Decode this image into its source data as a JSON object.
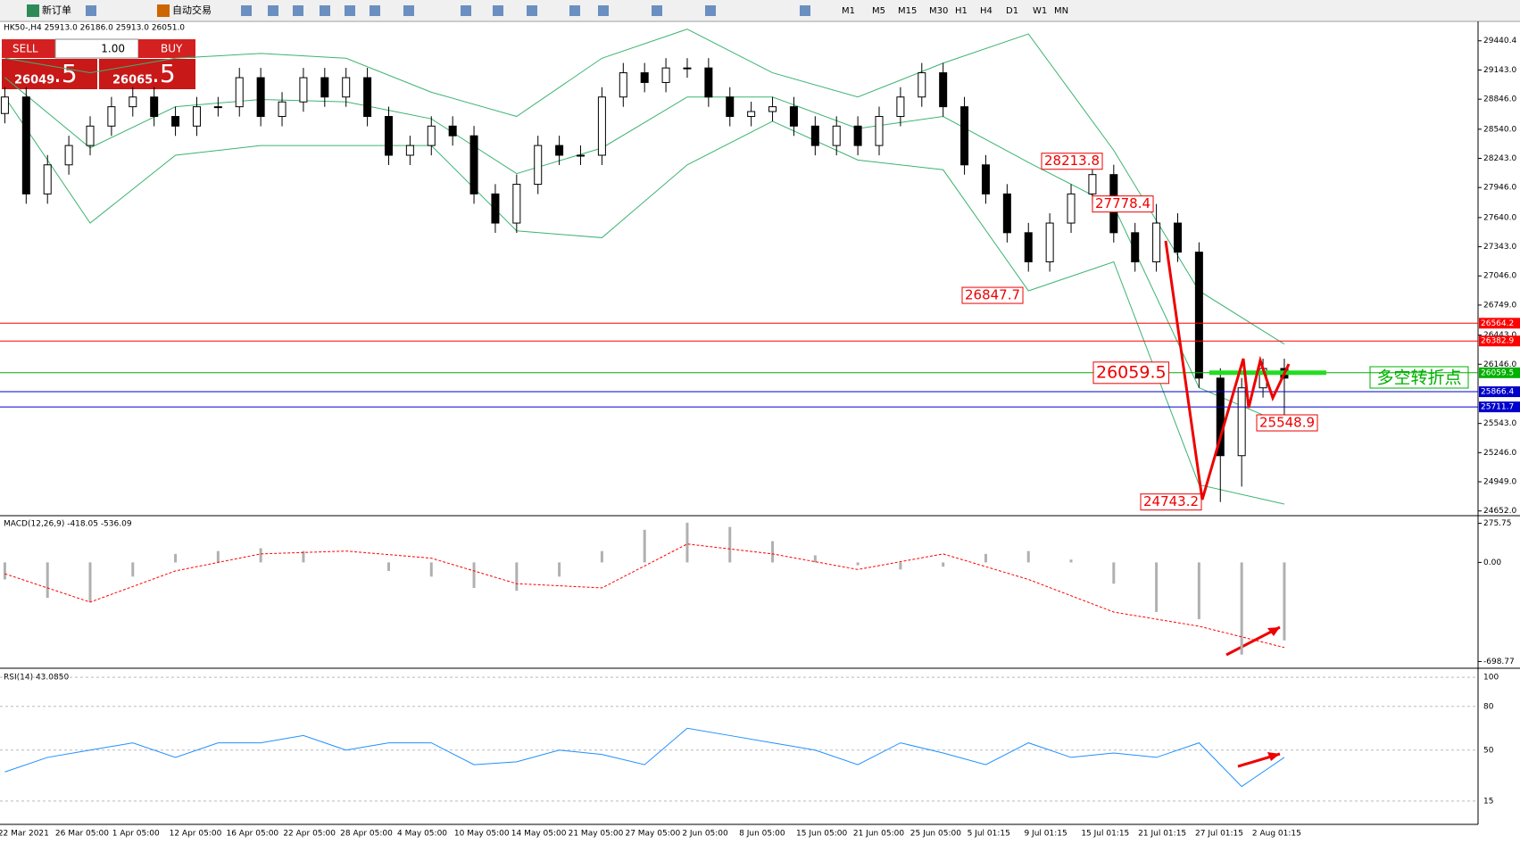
{
  "toolbar": {
    "new_order": "新订单",
    "auto_trading": "自动交易",
    "timeframes": [
      "M1",
      "M5",
      "M15",
      "M30",
      "H1",
      "H4",
      "D1",
      "W1",
      "MN"
    ]
  },
  "trade_panel": {
    "sell": "SELL",
    "buy": "BUY",
    "lot": "1.00",
    "sell_price": "26049",
    "sell_pips": ".5",
    "buy_price": "26065",
    "buy_pips": ".5"
  },
  "chart": {
    "header": "HK50-,H4  25913.0 26186.0 25913.0 26051.0",
    "ylim": [
      24622,
      29638
    ],
    "yticks": [
      29440.4,
      {
        "value": 29143,
        "label": "29143.0"
      },
      {
        "value": 28846,
        "label": "28846.0"
      },
      {
        "value": 28540,
        "label": "28540.0"
      },
      {
        "value": 28243,
        "label": "28243.0"
      },
      {
        "value": 27946,
        "label": "27946.0"
      },
      {
        "value": 27640,
        "label": "27640.0"
      },
      {
        "value": 27343,
        "label": "27343.0"
      },
      {
        "value": 27046,
        "label": "27046.0"
      },
      {
        "value": 26749,
        "label": "26749.0"
      },
      {
        "value": 26443,
        "label": "26443.0"
      },
      {
        "value": 26146,
        "label": "26146.0"
      },
      {
        "value": 25543,
        "label": "25543.0"
      },
      {
        "value": 25246,
        "label": "25246.0"
      },
      {
        "value": 24949,
        "label": "24949.0"
      },
      {
        "value": 24652,
        "label": "24652.0"
      }
    ],
    "levels": [
      {
        "value": 26564.2,
        "color": "#ff0000"
      },
      {
        "value": 26382.9,
        "color": "#ff0000"
      },
      {
        "value": 26059.5,
        "color": "#00b000"
      },
      {
        "value": 25866.4,
        "color": "#0000cc"
      },
      {
        "value": 25711.7,
        "color": "#0000cc"
      }
    ],
    "annotations": [
      28213.8,
      27778.4,
      26847.7,
      26059.5,
      25548.9,
      24743.2
    ],
    "pivot_label": "多空转折点",
    "candles": [
      [
        28700,
        28968,
        28600,
        28868
      ],
      [
        28868,
        28968,
        27781,
        27881
      ],
      [
        27881,
        28277,
        27781,
        28177
      ],
      [
        28177,
        28474,
        28077,
        28374
      ],
      [
        28374,
        28672,
        28274,
        28572
      ],
      [
        28572,
        28869,
        28472,
        28769
      ],
      [
        28769,
        28968,
        28669,
        28868
      ],
      [
        28868,
        28968,
        28570,
        28670
      ],
      [
        28670,
        28770,
        28472,
        28572
      ],
      [
        28572,
        28869,
        28472,
        28769
      ],
      [
        28769,
        28869,
        28669,
        28769
      ],
      [
        28769,
        29165,
        28669,
        29065
      ],
      [
        29065,
        29165,
        28570,
        28670
      ],
      [
        28670,
        28918,
        28570,
        28818
      ],
      [
        28818,
        29165,
        28718,
        29065
      ],
      [
        29065,
        29165,
        28768,
        28868
      ],
      [
        28868,
        29165,
        28768,
        29065
      ],
      [
        29065,
        29165,
        28570,
        28670
      ],
      [
        28670,
        28770,
        28175,
        28275
      ],
      [
        28275,
        28474,
        28175,
        28374
      ],
      [
        28374,
        28672,
        28274,
        28572
      ],
      [
        28572,
        28672,
        28373,
        28473
      ],
      [
        28473,
        28573,
        27781,
        27881
      ],
      [
        27881,
        27981,
        27484,
        27584
      ],
      [
        27584,
        28079,
        27484,
        27979
      ],
      [
        27979,
        28474,
        27879,
        28374
      ],
      [
        28374,
        28474,
        28175,
        28275
      ],
      [
        28275,
        28375,
        28175,
        28275
      ],
      [
        28275,
        28968,
        28175,
        28868
      ],
      [
        28868,
        29215,
        28768,
        29115
      ],
      [
        29115,
        29215,
        28916,
        29016
      ],
      [
        29016,
        29264,
        28916,
        29164
      ],
      [
        29164,
        29264,
        29064,
        29164
      ],
      [
        29164,
        29264,
        28768,
        28868
      ],
      [
        28868,
        28968,
        28570,
        28670
      ],
      [
        28670,
        28820,
        28570,
        28720
      ],
      [
        28720,
        28869,
        28620,
        28769
      ],
      [
        28769,
        28869,
        28472,
        28572
      ],
      [
        28572,
        28672,
        28274,
        28374
      ],
      [
        28374,
        28672,
        28274,
        28572
      ],
      [
        28572,
        28672,
        28274,
        28374
      ],
      [
        28374,
        28770,
        28274,
        28670
      ],
      [
        28670,
        28968,
        28570,
        28868
      ],
      [
        28868,
        29215,
        28768,
        29115
      ],
      [
        29115,
        29215,
        28669,
        28769
      ],
      [
        28769,
        28869,
        28077,
        28177
      ],
      [
        28177,
        28277,
        27781,
        27881
      ],
      [
        27881,
        27981,
        27386,
        27486
      ],
      [
        27486,
        27586,
        27089,
        27189
      ],
      [
        27189,
        27684,
        27089,
        27584
      ],
      [
        27584,
        27981,
        27484,
        27881
      ],
      [
        27881,
        28214,
        27781,
        28078
      ],
      [
        28078,
        28178,
        27386,
        27486
      ],
      [
        27486,
        27586,
        27089,
        27189
      ],
      [
        27189,
        27778,
        27089,
        27584
      ],
      [
        27584,
        27684,
        27188,
        27288
      ],
      [
        27288,
        27388,
        25905,
        26005
      ],
      [
        26005,
        26105,
        24743,
        25215
      ],
      [
        25215,
        26006,
        24900,
        25906
      ],
      [
        25906,
        26203,
        25806,
        26103
      ],
      [
        26103,
        26203,
        25549,
        26005
      ]
    ],
    "bands": {
      "color": "#3cb371",
      "upper": [
        29263,
        29115,
        29263,
        29312,
        29263,
        28917,
        28670,
        29263,
        29559,
        29115,
        28868,
        29213,
        29510,
        28325,
        26894,
        26351
      ],
      "middle": [
        29066,
        28350,
        28769,
        28843,
        28819,
        28646,
        28088,
        28349,
        28868,
        28868,
        28547,
        28670,
        28202,
        27757,
        25907,
        25537
      ],
      "lower": [
        28868,
        27584,
        28275,
        28374,
        28374,
        28374,
        27505,
        27435,
        28177,
        28621,
        28226,
        28127,
        26894,
        27189,
        24919,
        24722
      ]
    },
    "xlabels": [
      "22 Mar 2021",
      "26 Mar 05:00",
      "1 Apr 05:00",
      "12 Apr 05:00",
      "16 Apr 05:00",
      "22 Apr 05:00",
      "28 Apr 05:00",
      "4 May 05:00",
      "10 May 05:00",
      "14 May 05:00",
      "21 May 05:00",
      "27 May 05:00",
      "2 Jun 05:00",
      "8 Jun 05:00",
      "15 Jun 05:00",
      "21 Jun 05:00",
      "25 Jun 05:00",
      "5 Jul 01:15",
      "9 Jul 01:15",
      "15 Jul 01:15",
      "21 Jul 01:15",
      "27 Jul 01:15",
      "2 Aug 01:15"
    ],
    "macd": {
      "label": "MACD(12,26,9) -418.05 -536.09",
      "ylim": [
        -740,
        317
      ],
      "yticks": [
        275.75,
        {
          "value": 0,
          "label": "0.00"
        },
        -698.77
      ],
      "hist_color": "#b0b0b0",
      "signal_color": "#ff0000",
      "histogram": [
        -120,
        -250,
        -280,
        -100,
        60,
        80,
        100,
        80,
        0,
        -60,
        -100,
        -180,
        -200,
        -100,
        80,
        230,
        280,
        250,
        150,
        50,
        -20,
        -50,
        -30,
        60,
        80,
        20,
        -150,
        -350,
        -400,
        -650,
        -550
      ],
      "signal": [
        -80,
        -280,
        -60,
        60,
        80,
        30,
        -150,
        -180,
        130,
        60,
        -50,
        60,
        -120,
        -350,
        -450,
        -600
      ]
    },
    "rsi": {
      "label": "RSI(14) 43.0850",
      "ylim": [
        -1,
        105
      ],
      "yticks": [
        100,
        80,
        50,
        15
      ],
      "color": "#1e90ff",
      "values": [
        35,
        45,
        50,
        55,
        45,
        55,
        55,
        60,
        50,
        55,
        55,
        40,
        42,
        50,
        47,
        40,
        65,
        60,
        55,
        50,
        40,
        55,
        48,
        40,
        55,
        45,
        48,
        45,
        55,
        25,
        45
      ]
    }
  }
}
